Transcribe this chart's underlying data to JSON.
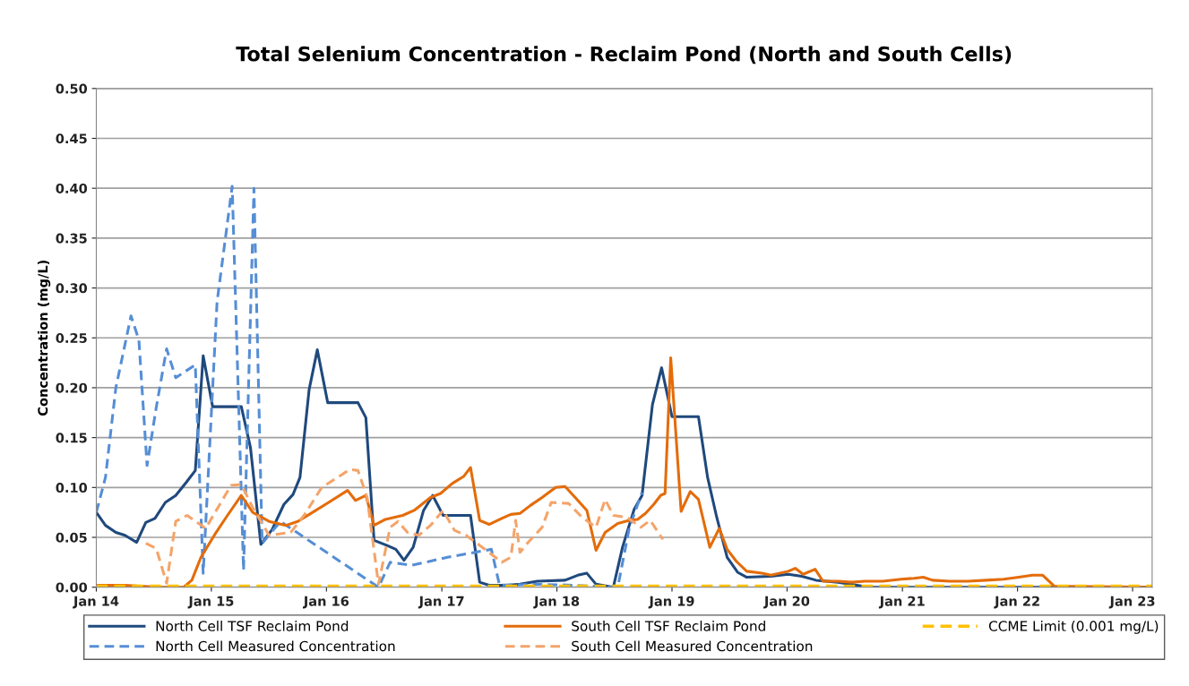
{
  "chart_data": {
    "type": "line",
    "title": "Total Selenium Concentration - Reclaim Pond (North and South Cells)",
    "ylabel": "Concentration (mg/L)",
    "xlim": [
      "2014-01-01",
      "2023-03-04"
    ],
    "xticks": [
      {
        "value": "2014-01-01",
        "label": "Jan 14"
      },
      {
        "value": "2015-01-01",
        "label": "Jan 15"
      },
      {
        "value": "2016-01-01",
        "label": "Jan 16"
      },
      {
        "value": "2017-01-01",
        "label": "Jan 17"
      },
      {
        "value": "2018-01-01",
        "label": "Jan 18"
      },
      {
        "value": "2019-01-01",
        "label": "Jan 19"
      },
      {
        "value": "2020-01-01",
        "label": "Jan 20"
      },
      {
        "value": "2021-01-01",
        "label": "Jan 21"
      },
      {
        "value": "2022-01-01",
        "label": "Jan 22"
      },
      {
        "value": "2023-01-01",
        "label": "Jan 23"
      }
    ],
    "ylim": [
      0,
      0.5
    ],
    "yticks": [
      {
        "value": 0,
        "label": "0.00"
      },
      {
        "value": 0.05,
        "label": "0.05"
      },
      {
        "value": 0.1,
        "label": "0.10"
      },
      {
        "value": 0.15,
        "label": "0.15"
      },
      {
        "value": 0.2,
        "label": "0.20"
      },
      {
        "value": 0.25,
        "label": "0.25"
      },
      {
        "value": 0.3,
        "label": "0.30"
      },
      {
        "value": 0.35,
        "label": "0.35"
      },
      {
        "value": 0.4,
        "label": "0.40"
      },
      {
        "value": 0.45,
        "label": "0.45"
      },
      {
        "value": 0.5,
        "label": "0.50"
      }
    ],
    "grid": "y",
    "legend": "bottom",
    "marker": "none",
    "series": [
      {
        "name": "North Cell TSF Reclaim Pond",
        "color": "#1f497d",
        "line_style": "solid",
        "x": [
          "2014-01-01",
          "2014-01-30",
          "2014-03-04",
          "2014-04-02",
          "2014-05-09",
          "2014-06-07",
          "2014-07-06",
          "2014-08-08",
          "2014-09-10",
          "2014-10-13",
          "2014-11-11",
          "2014-12-06",
          "2015-01-05",
          "2015-04-06",
          "2015-05-05",
          "2015-06-07",
          "2015-07-13",
          "2015-08-19",
          "2015-09-17",
          "2015-10-09",
          "2015-11-07",
          "2015-12-03",
          "2016-01-05",
          "2016-04-10",
          "2016-05-05",
          "2016-05-31",
          "2016-07-10",
          "2016-08-08",
          "2016-09-03",
          "2016-10-02",
          "2016-11-04",
          "2016-12-03",
          "2017-01-05",
          "2017-04-02",
          "2017-05-01",
          "2017-05-31",
          "2017-07-28",
          "2017-09-06",
          "2017-10-31",
          "2018-01-27",
          "2018-03-08",
          "2018-04-06",
          "2018-05-05",
          "2018-06-29",
          "2018-07-28",
          "2018-09-03",
          "2018-09-28",
          "2018-10-31",
          "2018-11-29",
          "2019-01-01",
          "2019-03-26",
          "2019-04-24",
          "2019-05-23",
          "2019-06-25",
          "2019-07-28",
          "2019-08-26",
          "2019-11-11",
          "2020-01-05",
          "2020-02-17",
          "2020-04-02",
          "2020-06-11",
          "2020-09-17",
          "2023-03-04"
        ],
        "values": [
          0.075,
          0.062,
          0.055,
          0.052,
          0.045,
          0.065,
          0.069,
          0.085,
          0.092,
          0.105,
          0.117,
          0.232,
          0.181,
          0.181,
          0.14,
          0.043,
          0.058,
          0.083,
          0.093,
          0.11,
          0.198,
          0.238,
          0.185,
          0.185,
          0.17,
          0.047,
          0.042,
          0.038,
          0.027,
          0.04,
          0.077,
          0.092,
          0.072,
          0.072,
          0.005,
          0.002,
          0.002,
          0.003,
          0.006,
          0.007,
          0.012,
          0.014,
          0.003,
          0.0,
          0.04,
          0.078,
          0.092,
          0.183,
          0.22,
          0.171,
          0.171,
          0.11,
          0.07,
          0.03,
          0.015,
          0.01,
          0.011,
          0.013,
          0.011,
          0.007,
          0.005,
          0.0,
          0.0
        ]
      },
      {
        "name": "North Cell Measured Concentration",
        "color": "#558ed5",
        "line_style": "dashed",
        "x": [
          "2014-01-01",
          "2014-01-30",
          "2014-03-04",
          "2014-04-21",
          "2014-05-16",
          "2014-06-11",
          "2014-07-10",
          "2014-08-12",
          "2014-09-10",
          "2014-11-11",
          "2014-12-06",
          "2015-01-19",
          "2015-03-08",
          "2015-04-13",
          "2015-05-16",
          "2015-06-11",
          "2015-08-08",
          "2016-06-14",
          "2016-07-21",
          "2016-09-28",
          "2017-01-19",
          "2017-06-07",
          "2017-07-03",
          "2017-10-31",
          "2018-02-21",
          "2018-07-13",
          "2018-08-19",
          "2018-09-28"
        ],
        "values": [
          0.075,
          0.11,
          0.2,
          0.272,
          0.248,
          0.122,
          0.18,
          0.239,
          0.21,
          0.223,
          0.014,
          0.286,
          0.402,
          0.017,
          0.4,
          0.044,
          0.066,
          0.0,
          0.025,
          0.022,
          0.03,
          0.038,
          0.002,
          0.003,
          0.002,
          0.0,
          0.06,
          0.095
        ]
      },
      {
        "name": "South Cell TSF Reclaim Pond",
        "color": "#e46c0a",
        "line_style": "solid",
        "x": [
          "2014-01-01",
          "2014-04-02",
          "2014-07-24",
          "2014-10-05",
          "2014-10-31",
          "2014-11-29",
          "2015-01-12",
          "2015-02-21",
          "2015-04-06",
          "2015-05-12",
          "2015-07-03",
          "2015-08-26",
          "2015-10-02",
          "2015-11-18",
          "2016-01-08",
          "2016-03-08",
          "2016-04-02",
          "2016-05-05",
          "2016-05-31",
          "2016-07-06",
          "2016-08-30",
          "2016-10-05",
          "2016-11-26",
          "2016-12-28",
          "2017-02-03",
          "2017-03-11",
          "2017-04-02",
          "2017-05-01",
          "2017-05-31",
          "2017-07-10",
          "2017-08-08",
          "2017-09-06",
          "2017-10-09",
          "2017-11-15",
          "2017-12-28",
          "2018-01-27",
          "2018-02-28",
          "2018-04-06",
          "2018-05-05",
          "2018-06-03",
          "2018-07-13",
          "2018-08-19",
          "2018-09-14",
          "2018-10-09",
          "2018-11-04",
          "2018-11-26",
          "2018-12-10",
          "2018-12-28",
          "2019-01-30",
          "2019-02-28",
          "2019-03-26",
          "2019-05-01",
          "2019-05-31",
          "2019-06-25",
          "2019-07-24",
          "2019-08-26",
          "2019-10-13",
          "2019-11-11",
          "2020-01-05",
          "2020-01-27",
          "2020-02-21",
          "2020-03-30",
          "2020-04-24",
          "2020-06-11",
          "2020-07-24",
          "2020-09-03",
          "2020-10-31",
          "2020-12-28",
          "2021-02-07",
          "2021-03-08",
          "2021-04-06",
          "2021-05-31",
          "2021-07-28",
          "2021-09-24",
          "2021-11-18",
          "2022-01-05",
          "2022-02-17",
          "2022-03-22",
          "2022-04-28",
          "2023-03-04"
        ],
        "values": [
          0.002,
          0.002,
          0.0,
          0.0,
          0.007,
          0.03,
          0.053,
          0.072,
          0.092,
          0.075,
          0.066,
          0.062,
          0.066,
          0.075,
          0.085,
          0.097,
          0.087,
          0.092,
          0.062,
          0.068,
          0.072,
          0.077,
          0.09,
          0.094,
          0.104,
          0.111,
          0.12,
          0.067,
          0.063,
          0.069,
          0.073,
          0.074,
          0.082,
          0.09,
          0.1,
          0.101,
          0.09,
          0.077,
          0.037,
          0.055,
          0.064,
          0.067,
          0.068,
          0.074,
          0.083,
          0.092,
          0.094,
          0.23,
          0.076,
          0.096,
          0.088,
          0.04,
          0.059,
          0.038,
          0.026,
          0.016,
          0.014,
          0.012,
          0.016,
          0.019,
          0.013,
          0.018,
          0.006,
          0.006,
          0.005,
          0.006,
          0.006,
          0.008,
          0.009,
          0.01,
          0.007,
          0.006,
          0.006,
          0.007,
          0.008,
          0.01,
          0.012,
          0.012,
          0.001,
          0.0
        ]
      },
      {
        "name": "South Cell Measured Concentration",
        "color": "#f4a46a",
        "line_style": "dashed",
        "x": [
          "2014-06-07",
          "2014-07-10",
          "2014-08-12",
          "2014-09-10",
          "2014-10-16",
          "2014-12-14",
          "2015-03-04",
          "2015-04-06",
          "2015-05-12",
          "2015-07-03",
          "2015-09-10",
          "2015-10-24",
          "2015-12-17",
          "2016-03-15",
          "2016-04-10",
          "2016-05-09",
          "2016-06-14",
          "2016-07-21",
          "2016-08-15",
          "2016-09-14",
          "2016-10-20",
          "2016-11-26",
          "2017-01-05",
          "2017-02-10",
          "2017-03-19",
          "2017-05-01",
          "2017-07-10",
          "2017-08-08",
          "2017-08-23",
          "2017-09-06",
          "2017-10-02",
          "2017-11-15",
          "2017-12-14",
          "2018-02-07",
          "2018-03-22",
          "2018-05-05",
          "2018-06-03",
          "2018-06-29",
          "2018-08-12",
          "2018-09-24",
          "2018-10-24",
          "2018-12-03"
        ],
        "values": [
          0.044,
          0.039,
          0.004,
          0.066,
          0.072,
          0.059,
          0.102,
          0.103,
          0.08,
          0.052,
          0.055,
          0.073,
          0.1,
          0.118,
          0.117,
          0.09,
          0.003,
          0.06,
          0.066,
          0.055,
          0.052,
          0.062,
          0.077,
          0.057,
          0.052,
          0.042,
          0.025,
          0.03,
          0.067,
          0.035,
          0.045,
          0.06,
          0.085,
          0.084,
          0.07,
          0.06,
          0.088,
          0.072,
          0.07,
          0.06,
          0.067,
          0.048
        ]
      },
      {
        "name": "CCME Limit (0.001 mg/L)",
        "color": "#ffc000",
        "line_style": "dashed",
        "x": [
          "2014-01-01",
          "2023-03-04"
        ],
        "values": [
          0.001,
          0.001
        ]
      }
    ]
  }
}
